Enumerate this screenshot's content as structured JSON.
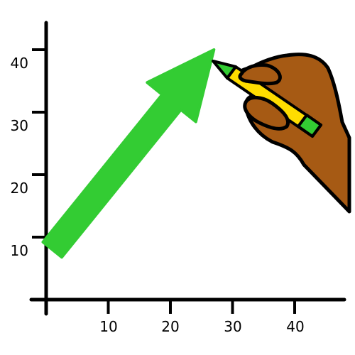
{
  "chart_data": {
    "type": "line",
    "title": "",
    "xlabel": "",
    "ylabel": "",
    "x_ticks": [
      "10",
      "20",
      "30",
      "40"
    ],
    "y_ticks": [
      "10",
      "20",
      "30",
      "40"
    ],
    "xlim": [
      0,
      48
    ],
    "ylim": [
      0,
      44
    ],
    "grid": false,
    "legend": "none",
    "series": [
      {
        "points": [
          {
            "x": 1,
            "y": 8
          },
          {
            "x": 27,
            "y": 40
          }
        ],
        "color": "#33cc33",
        "marker": "arrow-head"
      }
    ],
    "annotations": [
      {
        "kind": "hand-drawing-with-pencil",
        "icon": "hand-pencil-icon",
        "skin_color": "#a65a14",
        "pencil_color": "#ffdd00"
      }
    ]
  }
}
